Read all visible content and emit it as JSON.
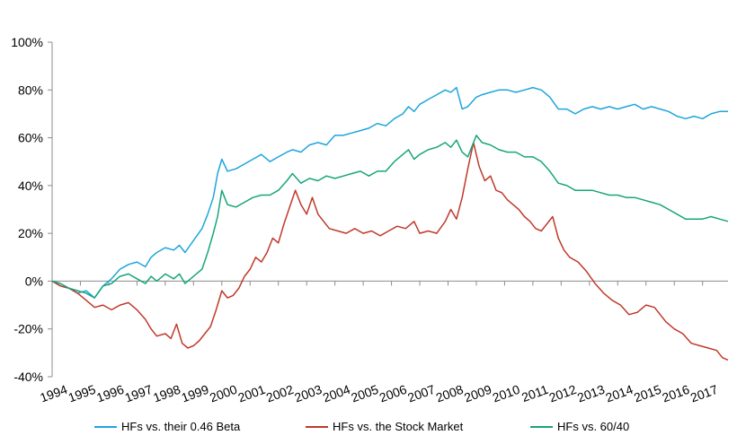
{
  "chart_data": {
    "type": "line",
    "title": "",
    "xlabel": "",
    "ylabel": "",
    "ylim": [
      -40,
      100
    ],
    "y_ticks": [
      -40,
      -20,
      0,
      20,
      40,
      60,
      80,
      100
    ],
    "y_tick_labels": [
      "-40%",
      "-20%",
      "0%",
      "20%",
      "40%",
      "60%",
      "80%",
      "100%"
    ],
    "x_range": [
      1994.0,
      2017.9
    ],
    "x_tick_labels": [
      "1994",
      "1995",
      "1996",
      "1997",
      "1998",
      "1999",
      "2000",
      "2001",
      "2002",
      "2003",
      "2004",
      "2005",
      "2006",
      "2007",
      "2008",
      "2009",
      "2010",
      "2011",
      "2012",
      "2013",
      "2014",
      "2015",
      "2016",
      "2017"
    ],
    "legend_position": "bottom",
    "series": [
      {
        "name": "HFs vs. their 0.46 Beta",
        "color": "#1ea5dc",
        "points": [
          [
            1994.0,
            0
          ],
          [
            1994.3,
            -2
          ],
          [
            1994.6,
            -3
          ],
          [
            1994.9,
            -5
          ],
          [
            1995.2,
            -4
          ],
          [
            1995.5,
            -7
          ],
          [
            1995.8,
            -2
          ],
          [
            1996.1,
            1
          ],
          [
            1996.4,
            5
          ],
          [
            1996.7,
            7
          ],
          [
            1997.0,
            8
          ],
          [
            1997.3,
            6
          ],
          [
            1997.5,
            10
          ],
          [
            1997.7,
            12
          ],
          [
            1998.0,
            14
          ],
          [
            1998.3,
            13
          ],
          [
            1998.5,
            15
          ],
          [
            1998.7,
            12
          ],
          [
            1999.0,
            17
          ],
          [
            1999.3,
            22
          ],
          [
            1999.5,
            28
          ],
          [
            1999.7,
            35
          ],
          [
            1999.85,
            45
          ],
          [
            2000.0,
            51
          ],
          [
            2000.2,
            46
          ],
          [
            2000.5,
            47
          ],
          [
            2000.8,
            49
          ],
          [
            2001.1,
            51
          ],
          [
            2001.4,
            53
          ],
          [
            2001.7,
            50
          ],
          [
            2002.0,
            52
          ],
          [
            2002.3,
            54
          ],
          [
            2002.5,
            55
          ],
          [
            2002.8,
            54
          ],
          [
            2003.1,
            57
          ],
          [
            2003.4,
            58
          ],
          [
            2003.7,
            57
          ],
          [
            2004.0,
            61
          ],
          [
            2004.3,
            61
          ],
          [
            2004.6,
            62
          ],
          [
            2004.9,
            63
          ],
          [
            2005.2,
            64
          ],
          [
            2005.5,
            66
          ],
          [
            2005.8,
            65
          ],
          [
            2006.1,
            68
          ],
          [
            2006.4,
            70
          ],
          [
            2006.6,
            73
          ],
          [
            2006.8,
            71
          ],
          [
            2007.0,
            74
          ],
          [
            2007.3,
            76
          ],
          [
            2007.6,
            78
          ],
          [
            2007.9,
            80
          ],
          [
            2008.1,
            79
          ],
          [
            2008.3,
            81
          ],
          [
            2008.5,
            72
          ],
          [
            2008.7,
            73
          ],
          [
            2009.0,
            77
          ],
          [
            2009.2,
            78
          ],
          [
            2009.5,
            79
          ],
          [
            2009.8,
            80
          ],
          [
            2010.1,
            80
          ],
          [
            2010.4,
            79
          ],
          [
            2010.7,
            80
          ],
          [
            2011.0,
            81
          ],
          [
            2011.3,
            80
          ],
          [
            2011.6,
            77
          ],
          [
            2011.9,
            72
          ],
          [
            2012.2,
            72
          ],
          [
            2012.5,
            70
          ],
          [
            2012.8,
            72
          ],
          [
            2013.1,
            73
          ],
          [
            2013.4,
            72
          ],
          [
            2013.7,
            73
          ],
          [
            2014.0,
            72
          ],
          [
            2014.3,
            73
          ],
          [
            2014.6,
            74
          ],
          [
            2014.9,
            72
          ],
          [
            2015.2,
            73
          ],
          [
            2015.5,
            72
          ],
          [
            2015.8,
            71
          ],
          [
            2016.1,
            69
          ],
          [
            2016.4,
            68
          ],
          [
            2016.7,
            69
          ],
          [
            2017.0,
            68
          ],
          [
            2017.3,
            70
          ],
          [
            2017.6,
            71
          ],
          [
            2017.9,
            71
          ]
        ]
      },
      {
        "name": "HFs vs. the Stock Market",
        "color": "#c0392b",
        "points": [
          [
            1994.0,
            0
          ],
          [
            1994.3,
            -2
          ],
          [
            1994.6,
            -3
          ],
          [
            1994.9,
            -5
          ],
          [
            1995.2,
            -8
          ],
          [
            1995.5,
            -11
          ],
          [
            1995.8,
            -10
          ],
          [
            1996.1,
            -12
          ],
          [
            1996.4,
            -10
          ],
          [
            1996.7,
            -9
          ],
          [
            1997.0,
            -12
          ],
          [
            1997.3,
            -16
          ],
          [
            1997.5,
            -20
          ],
          [
            1997.7,
            -23
          ],
          [
            1998.0,
            -22
          ],
          [
            1998.2,
            -24
          ],
          [
            1998.4,
            -18
          ],
          [
            1998.6,
            -26
          ],
          [
            1998.8,
            -28
          ],
          [
            1999.0,
            -27
          ],
          [
            1999.2,
            -25
          ],
          [
            1999.4,
            -22
          ],
          [
            1999.6,
            -19
          ],
          [
            1999.8,
            -12
          ],
          [
            2000.0,
            -4
          ],
          [
            2000.2,
            -7
          ],
          [
            2000.4,
            -6
          ],
          [
            2000.6,
            -3
          ],
          [
            2000.8,
            2
          ],
          [
            2001.0,
            5
          ],
          [
            2001.2,
            10
          ],
          [
            2001.4,
            8
          ],
          [
            2001.6,
            12
          ],
          [
            2001.8,
            18
          ],
          [
            2002.0,
            16
          ],
          [
            2002.2,
            24
          ],
          [
            2002.4,
            31
          ],
          [
            2002.6,
            38
          ],
          [
            2002.8,
            32
          ],
          [
            2003.0,
            28
          ],
          [
            2003.2,
            35
          ],
          [
            2003.4,
            28
          ],
          [
            2003.6,
            25
          ],
          [
            2003.8,
            22
          ],
          [
            2004.1,
            21
          ],
          [
            2004.4,
            20
          ],
          [
            2004.7,
            22
          ],
          [
            2005.0,
            20
          ],
          [
            2005.3,
            21
          ],
          [
            2005.6,
            19
          ],
          [
            2005.9,
            21
          ],
          [
            2006.2,
            23
          ],
          [
            2006.5,
            22
          ],
          [
            2006.8,
            25
          ],
          [
            2007.0,
            20
          ],
          [
            2007.3,
            21
          ],
          [
            2007.6,
            20
          ],
          [
            2007.9,
            25
          ],
          [
            2008.1,
            30
          ],
          [
            2008.3,
            26
          ],
          [
            2008.5,
            35
          ],
          [
            2008.7,
            47
          ],
          [
            2008.9,
            58
          ],
          [
            2009.1,
            48
          ],
          [
            2009.3,
            42
          ],
          [
            2009.5,
            44
          ],
          [
            2009.7,
            38
          ],
          [
            2009.9,
            37
          ],
          [
            2010.1,
            34
          ],
          [
            2010.3,
            32
          ],
          [
            2010.5,
            30
          ],
          [
            2010.7,
            27
          ],
          [
            2010.9,
            25
          ],
          [
            2011.1,
            22
          ],
          [
            2011.3,
            21
          ],
          [
            2011.5,
            24
          ],
          [
            2011.7,
            27
          ],
          [
            2011.9,
            18
          ],
          [
            2012.1,
            13
          ],
          [
            2012.3,
            10
          ],
          [
            2012.6,
            8
          ],
          [
            2012.9,
            4
          ],
          [
            2013.2,
            -1
          ],
          [
            2013.5,
            -5
          ],
          [
            2013.8,
            -8
          ],
          [
            2014.1,
            -10
          ],
          [
            2014.4,
            -14
          ],
          [
            2014.7,
            -13
          ],
          [
            2015.0,
            -10
          ],
          [
            2015.3,
            -11
          ],
          [
            2015.5,
            -14
          ],
          [
            2015.7,
            -17
          ],
          [
            2016.0,
            -20
          ],
          [
            2016.3,
            -22
          ],
          [
            2016.6,
            -26
          ],
          [
            2016.9,
            -27
          ],
          [
            2017.2,
            -28
          ],
          [
            2017.5,
            -29
          ],
          [
            2017.7,
            -32
          ],
          [
            2017.9,
            -33
          ]
        ]
      },
      {
        "name": "HFs vs. 60/40",
        "color": "#17a57a",
        "points": [
          [
            1994.0,
            0
          ],
          [
            1994.3,
            -1
          ],
          [
            1994.6,
            -3
          ],
          [
            1994.9,
            -4
          ],
          [
            1995.2,
            -5
          ],
          [
            1995.5,
            -7
          ],
          [
            1995.8,
            -2
          ],
          [
            1996.1,
            -1
          ],
          [
            1996.4,
            2
          ],
          [
            1996.7,
            3
          ],
          [
            1997.0,
            1
          ],
          [
            1997.3,
            -1
          ],
          [
            1997.5,
            2
          ],
          [
            1997.7,
            0
          ],
          [
            1998.0,
            3
          ],
          [
            1998.3,
            1
          ],
          [
            1998.5,
            3
          ],
          [
            1998.7,
            -1
          ],
          [
            1999.0,
            2
          ],
          [
            1999.3,
            5
          ],
          [
            1999.5,
            12
          ],
          [
            1999.7,
            20
          ],
          [
            1999.85,
            27
          ],
          [
            2000.0,
            38
          ],
          [
            2000.2,
            32
          ],
          [
            2000.5,
            31
          ],
          [
            2000.8,
            33
          ],
          [
            2001.1,
            35
          ],
          [
            2001.4,
            36
          ],
          [
            2001.7,
            36
          ],
          [
            2002.0,
            38
          ],
          [
            2002.3,
            42
          ],
          [
            2002.5,
            45
          ],
          [
            2002.8,
            41
          ],
          [
            2003.1,
            43
          ],
          [
            2003.4,
            42
          ],
          [
            2003.7,
            44
          ],
          [
            2004.0,
            43
          ],
          [
            2004.3,
            44
          ],
          [
            2004.6,
            45
          ],
          [
            2004.9,
            46
          ],
          [
            2005.2,
            44
          ],
          [
            2005.5,
            46
          ],
          [
            2005.8,
            46
          ],
          [
            2006.1,
            50
          ],
          [
            2006.4,
            53
          ],
          [
            2006.6,
            55
          ],
          [
            2006.8,
            51
          ],
          [
            2007.0,
            53
          ],
          [
            2007.3,
            55
          ],
          [
            2007.6,
            56
          ],
          [
            2007.9,
            58
          ],
          [
            2008.1,
            56
          ],
          [
            2008.3,
            59
          ],
          [
            2008.5,
            54
          ],
          [
            2008.7,
            52
          ],
          [
            2009.0,
            61
          ],
          [
            2009.2,
            58
          ],
          [
            2009.5,
            57
          ],
          [
            2009.8,
            55
          ],
          [
            2010.1,
            54
          ],
          [
            2010.4,
            54
          ],
          [
            2010.7,
            52
          ],
          [
            2011.0,
            52
          ],
          [
            2011.3,
            50
          ],
          [
            2011.6,
            46
          ],
          [
            2011.9,
            41
          ],
          [
            2012.2,
            40
          ],
          [
            2012.5,
            38
          ],
          [
            2012.8,
            38
          ],
          [
            2013.1,
            38
          ],
          [
            2013.4,
            37
          ],
          [
            2013.7,
            36
          ],
          [
            2014.0,
            36
          ],
          [
            2014.3,
            35
          ],
          [
            2014.6,
            35
          ],
          [
            2014.9,
            34
          ],
          [
            2015.2,
            33
          ],
          [
            2015.5,
            32
          ],
          [
            2015.8,
            30
          ],
          [
            2016.1,
            28
          ],
          [
            2016.4,
            26
          ],
          [
            2016.7,
            26
          ],
          [
            2017.0,
            26
          ],
          [
            2017.3,
            27
          ],
          [
            2017.6,
            26
          ],
          [
            2017.9,
            25
          ]
        ]
      }
    ]
  }
}
